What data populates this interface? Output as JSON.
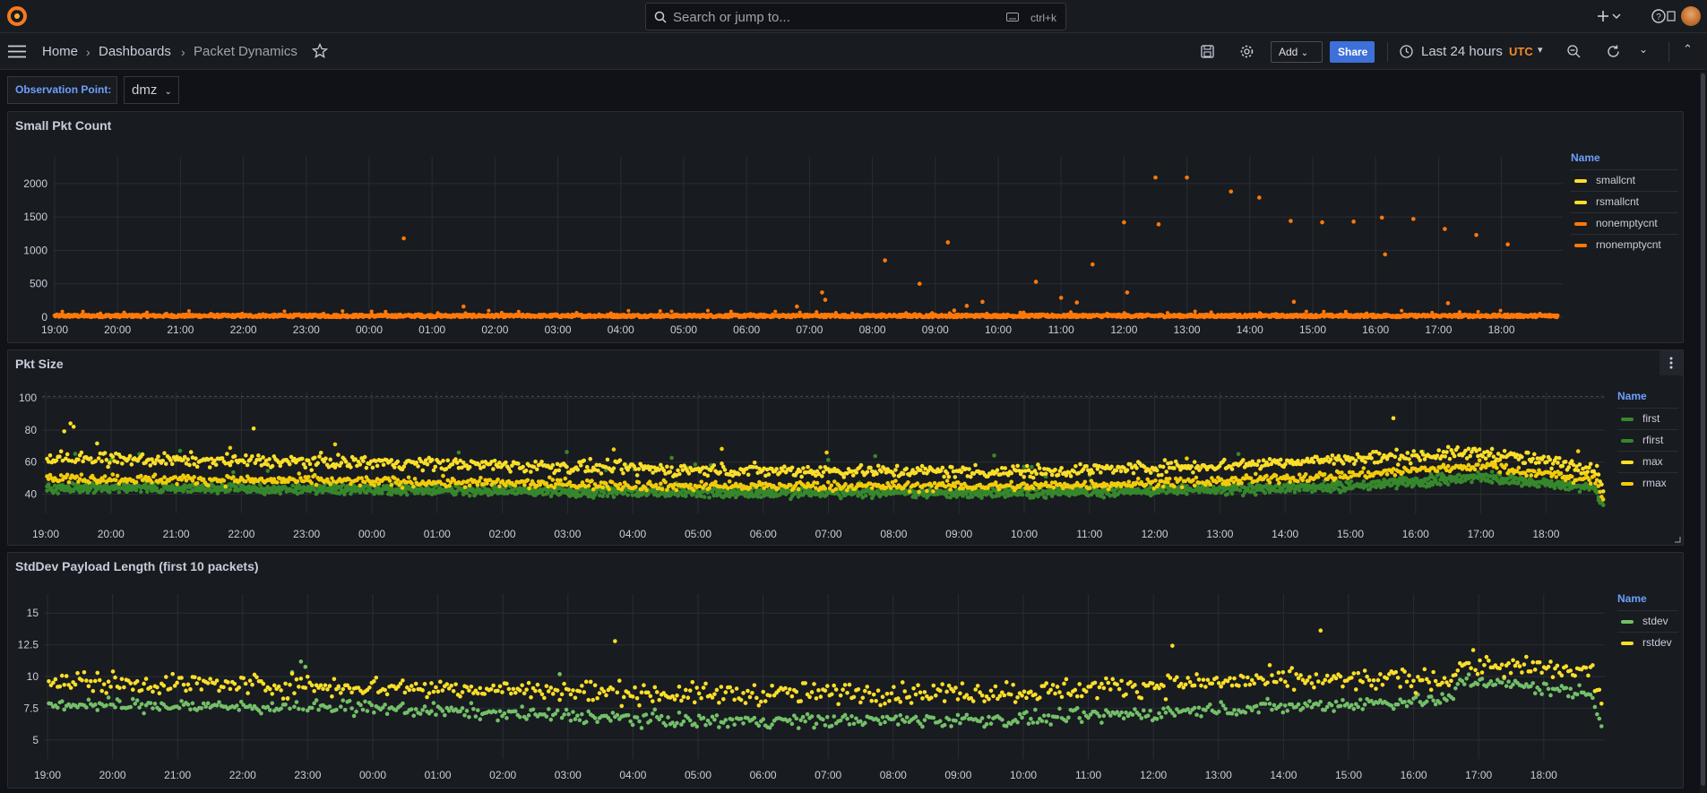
{
  "topbar": {
    "search_placeholder": "Search or jump to...",
    "search_shortcut": "ctrl+k",
    "icons": [
      "grafana-logo-icon",
      "search-icon",
      "keyboard-icon",
      "plus-icon",
      "chevron-down-icon",
      "help-icon",
      "news-icon",
      "avatar"
    ]
  },
  "navbar": {
    "breadcrumbs": [
      "Home",
      "Dashboards",
      "Packet Dynamics"
    ],
    "add_label": "Add",
    "share_label": "Share",
    "time_range": "Last 24 hours",
    "timezone": "UTC"
  },
  "variables": {
    "observation_point_label": "Observation Point:",
    "observation_point_value": "dmz"
  },
  "colors": {
    "orange": "#ff780a",
    "yellow": "#fade2a",
    "gold": "#f2cc0c",
    "green": "#37872d",
    "light_green": "#73bf69",
    "grid": "#2a2d33",
    "axis_text": "#ccccdc"
  },
  "panels": [
    {
      "title": "Small Pkt Count",
      "legend_header": "Name",
      "legend": [
        {
          "name": "smallcnt",
          "color": "#fade2a"
        },
        {
          "name": "rsmallcnt",
          "color": "#fade2a"
        },
        {
          "name": "nonemptycnt",
          "color": "#ff780a"
        },
        {
          "name": "rnonemptycnt",
          "color": "#ff780a"
        }
      ]
    },
    {
      "title": "Pkt Size",
      "legend_header": "Name",
      "legend": [
        {
          "name": "first",
          "color": "#37872d"
        },
        {
          "name": "rfirst",
          "color": "#37872d"
        },
        {
          "name": "max",
          "color": "#fade2a"
        },
        {
          "name": "rmax",
          "color": "#f2cc0c"
        }
      ]
    },
    {
      "title": "StdDev Payload Length (first 10 packets)",
      "legend_header": "Name",
      "legend": [
        {
          "name": "stdev",
          "color": "#73bf69"
        },
        {
          "name": "rstdev",
          "color": "#fade2a"
        }
      ]
    }
  ],
  "chart_data": [
    {
      "type": "scatter",
      "title": "Small Pkt Count",
      "x_ticks": [
        "19:00",
        "20:00",
        "21:00",
        "22:00",
        "23:00",
        "00:00",
        "01:00",
        "02:00",
        "03:00",
        "04:00",
        "05:00",
        "06:00",
        "07:00",
        "08:00",
        "09:00",
        "10:00",
        "11:00",
        "12:00",
        "13:00",
        "14:00",
        "15:00",
        "16:00",
        "17:00",
        "18:00"
      ],
      "y_ticks": [
        "0",
        "500",
        "1000",
        "1500",
        "2000"
      ],
      "ylim": [
        0,
        2400
      ],
      "series": [
        {
          "name": "nonemptycnt",
          "baseline": [
            0,
            40
          ]
        },
        {
          "name": "rnonemptycnt",
          "outliers": [
            [
              5.55,
              1180
            ],
            [
              6.5,
              160
            ],
            [
              11.8,
              160
            ],
            [
              12.2,
              370
            ],
            [
              12.25,
              260
            ],
            [
              13.2,
              850
            ],
            [
              13.75,
              500
            ],
            [
              13.95,
              60
            ],
            [
              14.2,
              1120
            ],
            [
              14.3,
              100
            ],
            [
              14.5,
              170
            ],
            [
              14.75,
              230
            ],
            [
              15.6,
              530
            ],
            [
              16.0,
              290
            ],
            [
              16.25,
              220
            ],
            [
              16.5,
              790
            ],
            [
              17.0,
              1420
            ],
            [
              17.05,
              370
            ],
            [
              17.5,
              2090
            ],
            [
              17.55,
              1390
            ],
            [
              18.0,
              2090
            ],
            [
              18.7,
              1880
            ],
            [
              19.15,
              1790
            ],
            [
              19.65,
              1440
            ],
            [
              19.7,
              230
            ],
            [
              20.15,
              1420
            ],
            [
              20.65,
              1430
            ],
            [
              21.1,
              1490
            ],
            [
              21.15,
              940
            ],
            [
              21.6,
              1470
            ],
            [
              22.1,
              1320
            ],
            [
              22.15,
              210
            ],
            [
              22.6,
              1230
            ],
            [
              23.1,
              1090
            ]
          ]
        }
      ]
    },
    {
      "type": "scatter",
      "title": "Pkt Size",
      "x_ticks": [
        "19:00",
        "20:00",
        "21:00",
        "22:00",
        "23:00",
        "00:00",
        "01:00",
        "02:00",
        "03:00",
        "04:00",
        "05:00",
        "06:00",
        "07:00",
        "08:00",
        "09:00",
        "10:00",
        "11:00",
        "12:00",
        "13:00",
        "14:00",
        "15:00",
        "16:00",
        "17:00",
        "18:00"
      ],
      "y_ticks": [
        "40",
        "60",
        "80",
        "100"
      ],
      "ylim": [
        28,
        104
      ],
      "series": [
        {
          "name": "first",
          "trend": [
            [
              0,
              43
            ],
            [
              5,
              42
            ],
            [
              10,
              40
            ],
            [
              15,
              40
            ],
            [
              18,
              42
            ],
            [
              20,
              44
            ],
            [
              22,
              50
            ],
            [
              24,
              42
            ]
          ]
        },
        {
          "name": "rfirst",
          "trend": [
            [
              0,
              45
            ],
            [
              5,
              44
            ],
            [
              10,
              42
            ],
            [
              15,
              42
            ],
            [
              18,
              44
            ],
            [
              20,
              46
            ],
            [
              22,
              52
            ],
            [
              24,
              43
            ]
          ]
        },
        {
          "name": "max",
          "trend": [
            [
              0,
              62
            ],
            [
              5,
              60
            ],
            [
              10,
              55
            ],
            [
              15,
              54
            ],
            [
              18,
              58
            ],
            [
              20,
              62
            ],
            [
              22,
              66
            ],
            [
              24,
              55
            ]
          ]
        },
        {
          "name": "rmax",
          "trend": [
            [
              0,
              50
            ],
            [
              5,
              48
            ],
            [
              10,
              45
            ],
            [
              15,
              45
            ],
            [
              18,
              48
            ],
            [
              20,
              52
            ],
            [
              22,
              58
            ],
            [
              24,
              47
            ]
          ]
        }
      ]
    },
    {
      "type": "scatter",
      "title": "StdDev Payload Length (first 10 packets)",
      "x_ticks": [
        "19:00",
        "20:00",
        "21:00",
        "22:00",
        "23:00",
        "00:00",
        "01:00",
        "02:00",
        "03:00",
        "04:00",
        "05:00",
        "06:00",
        "07:00",
        "08:00",
        "09:00",
        "10:00",
        "11:00",
        "12:00",
        "13:00",
        "14:00",
        "15:00",
        "16:00",
        "17:00",
        "18:00"
      ],
      "y_ticks": [
        "5",
        "7.5",
        "10",
        "12.5",
        "15"
      ],
      "ylim": [
        3.5,
        16.5
      ],
      "series": [
        {
          "name": "stdev",
          "trend": [
            [
              0,
              7.8
            ],
            [
              5,
              7.5
            ],
            [
              10,
              6.5
            ],
            [
              15,
              6.6
            ],
            [
              18,
              7.4
            ],
            [
              21.6,
              8.2
            ],
            [
              21.7,
              9.8
            ],
            [
              24,
              8.5
            ]
          ]
        },
        {
          "name": "rstdev",
          "trend": [
            [
              0,
              9.6
            ],
            [
              5,
              9.2
            ],
            [
              10,
              8.6
            ],
            [
              15,
              8.8
            ],
            [
              18,
              9.6
            ],
            [
              21.6,
              9.8
            ],
            [
              21.7,
              11.0
            ],
            [
              24,
              10.2
            ]
          ]
        }
      ]
    }
  ]
}
